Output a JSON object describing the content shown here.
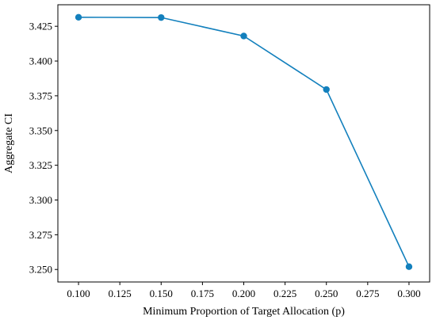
{
  "chart_data": {
    "type": "line",
    "title": "",
    "xlabel": "Minimum Proportion of Target Allocation (p)",
    "ylabel": "Aggregate CI",
    "xlim": [
      0.0875,
      0.3125
    ],
    "ylim": [
      3.241,
      3.4405
    ],
    "xticks": [
      "0.100",
      "0.125",
      "0.150",
      "0.175",
      "0.200",
      "0.225",
      "0.250",
      "0.275",
      "0.300"
    ],
    "yticks": [
      "3.250",
      "3.275",
      "3.300",
      "3.325",
      "3.350",
      "3.375",
      "3.400",
      "3.425"
    ],
    "grid": false,
    "legend": "none",
    "series": [
      {
        "color": "#1380bd",
        "x": [
          0.1,
          0.15,
          0.2,
          0.25,
          0.3
        ],
        "y": [
          3.4315,
          3.4313,
          3.418,
          3.3795,
          3.252
        ]
      }
    ]
  }
}
